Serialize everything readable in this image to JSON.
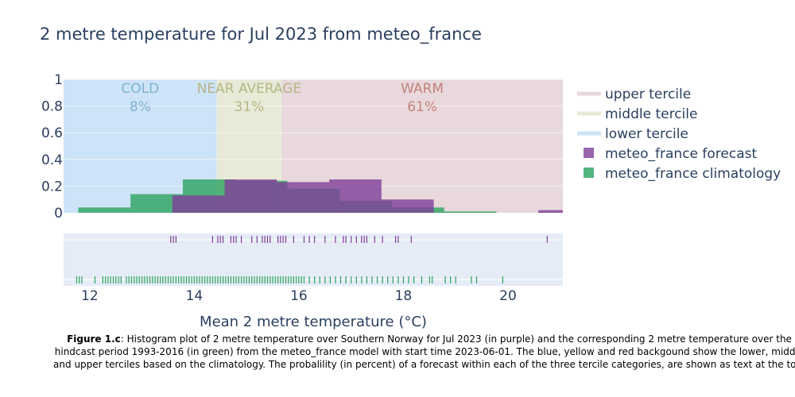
{
  "title": "2 metre temperature for Jul 2023 from meteo_france",
  "caption": {
    "label": "Figure 1.c",
    "text": ": Histogram plot of 2 metre temperature over Southern Norway for Jul 2023 (in purple) and the corresponding 2 metre temperature over the hindcast period 1993-2016 (in green) from the meteo_france model with start time 2023-06-01. The blue, yellow and red backgound show the lower, middle and upper terciles based on the climatology. The probalility (in percent) of a forecast within each of the three tercile categories, are shown as text at the top."
  },
  "colors": {
    "forecast": "#7f3f98",
    "climatology": "#2ca25f",
    "lower": "#cde3f7",
    "middle": "#e8ead8",
    "upper": "#e8d8dc",
    "cold_text": "#7fb3d0",
    "near_text": "#b5b585",
    "warm_text": "#c0837d",
    "rug_bg": "#e5ecf6",
    "axis_text": "#2a3f5f"
  },
  "chart_data": {
    "type": "bar",
    "xlabel": "Mean 2 metre temperature (°C)",
    "ylabel": "",
    "xlim": [
      11.5,
      21.05
    ],
    "ylim": [
      0,
      1
    ],
    "xticks": [
      12,
      14,
      16,
      18,
      20
    ],
    "yticks": [
      0,
      0.2,
      0.4,
      0.6,
      0.8,
      1
    ],
    "ytick_labels": [
      "0",
      "0.2",
      "0.4",
      "0.6",
      "0.8",
      "1"
    ],
    "terciles": [
      {
        "name": "lower tercile",
        "x0": 11.5,
        "x1": 14.43,
        "label": "COLD",
        "percent": "8%"
      },
      {
        "name": "middle tercile",
        "x0": 14.43,
        "x1": 15.67,
        "label": "NEAR AVERAGE",
        "percent": "31%"
      },
      {
        "name": "upper tercile",
        "x0": 15.67,
        "x1": 21.05,
        "label": "WARM",
        "percent": "61%"
      }
    ],
    "series": [
      {
        "name": "meteo_france climatology",
        "bins": [
          {
            "x0": 11.78,
            "x1": 12.78,
            "y": 0.04
          },
          {
            "x0": 12.78,
            "x1": 13.78,
            "y": 0.14
          },
          {
            "x0": 13.78,
            "x1": 14.78,
            "y": 0.25
          },
          {
            "x0": 14.78,
            "x1": 15.78,
            "y": 0.24
          },
          {
            "x0": 15.78,
            "x1": 16.78,
            "y": 0.18
          },
          {
            "x0": 16.78,
            "x1": 17.78,
            "y": 0.09
          },
          {
            "x0": 17.78,
            "x1": 18.78,
            "y": 0.04
          },
          {
            "x0": 18.78,
            "x1": 19.78,
            "y": 0.01
          }
        ],
        "rug": [
          11.75,
          11.8,
          11.85,
          12.1,
          12.25,
          12.3,
          12.35,
          12.4,
          12.45,
          12.5,
          12.55,
          12.6,
          12.7,
          12.75,
          12.8,
          12.85,
          12.9,
          12.95,
          13.0,
          13.05,
          13.1,
          13.15,
          13.2,
          13.25,
          13.3,
          13.35,
          13.4,
          13.45,
          13.5,
          13.55,
          13.6,
          13.65,
          13.7,
          13.75,
          13.8,
          13.85,
          13.9,
          13.95,
          14.0,
          14.05,
          14.1,
          14.15,
          14.2,
          14.25,
          14.3,
          14.35,
          14.4,
          14.45,
          14.5,
          14.55,
          14.6,
          14.65,
          14.7,
          14.75,
          14.8,
          14.85,
          14.9,
          14.95,
          15.0,
          15.05,
          15.1,
          15.15,
          15.2,
          15.25,
          15.3,
          15.35,
          15.4,
          15.45,
          15.5,
          15.55,
          15.6,
          15.65,
          15.7,
          15.75,
          15.8,
          15.85,
          15.9,
          15.95,
          16.0,
          16.05,
          16.1,
          16.2,
          16.3,
          16.4,
          16.5,
          16.6,
          16.7,
          16.8,
          16.9,
          17.0,
          17.1,
          17.2,
          17.3,
          17.4,
          17.5,
          17.6,
          17.7,
          17.8,
          17.9,
          18.0,
          18.1,
          18.2,
          18.35,
          18.5,
          18.55,
          18.8,
          18.9,
          19.0,
          19.3,
          19.4,
          19.9
        ]
      },
      {
        "name": "meteo_france forecast",
        "bins": [
          {
            "x0": 13.58,
            "x1": 14.58,
            "y": 0.13
          },
          {
            "x0": 14.58,
            "x1": 15.58,
            "y": 0.25
          },
          {
            "x0": 15.58,
            "x1": 16.58,
            "y": 0.23
          },
          {
            "x0": 16.58,
            "x1": 17.58,
            "y": 0.25
          },
          {
            "x0": 17.58,
            "x1": 18.58,
            "y": 0.1
          },
          {
            "x0": 20.58,
            "x1": 21.58,
            "y": 0.02
          }
        ],
        "rug": [
          13.55,
          13.6,
          13.65,
          14.35,
          14.45,
          14.5,
          14.55,
          14.7,
          14.75,
          14.8,
          14.9,
          15.1,
          15.2,
          15.3,
          15.35,
          15.4,
          15.45,
          15.6,
          15.65,
          15.7,
          15.75,
          15.9,
          16.1,
          16.2,
          16.3,
          16.5,
          16.7,
          16.85,
          16.9,
          17.0,
          17.1,
          17.2,
          17.25,
          17.3,
          17.45,
          17.6,
          17.85,
          17.9,
          18.15,
          20.75
        ]
      }
    ],
    "legend": [
      "upper tercile",
      "middle tercile",
      "lower tercile",
      "meteo_france forecast",
      "meteo_france climatology"
    ],
    "legend_position": "right"
  }
}
